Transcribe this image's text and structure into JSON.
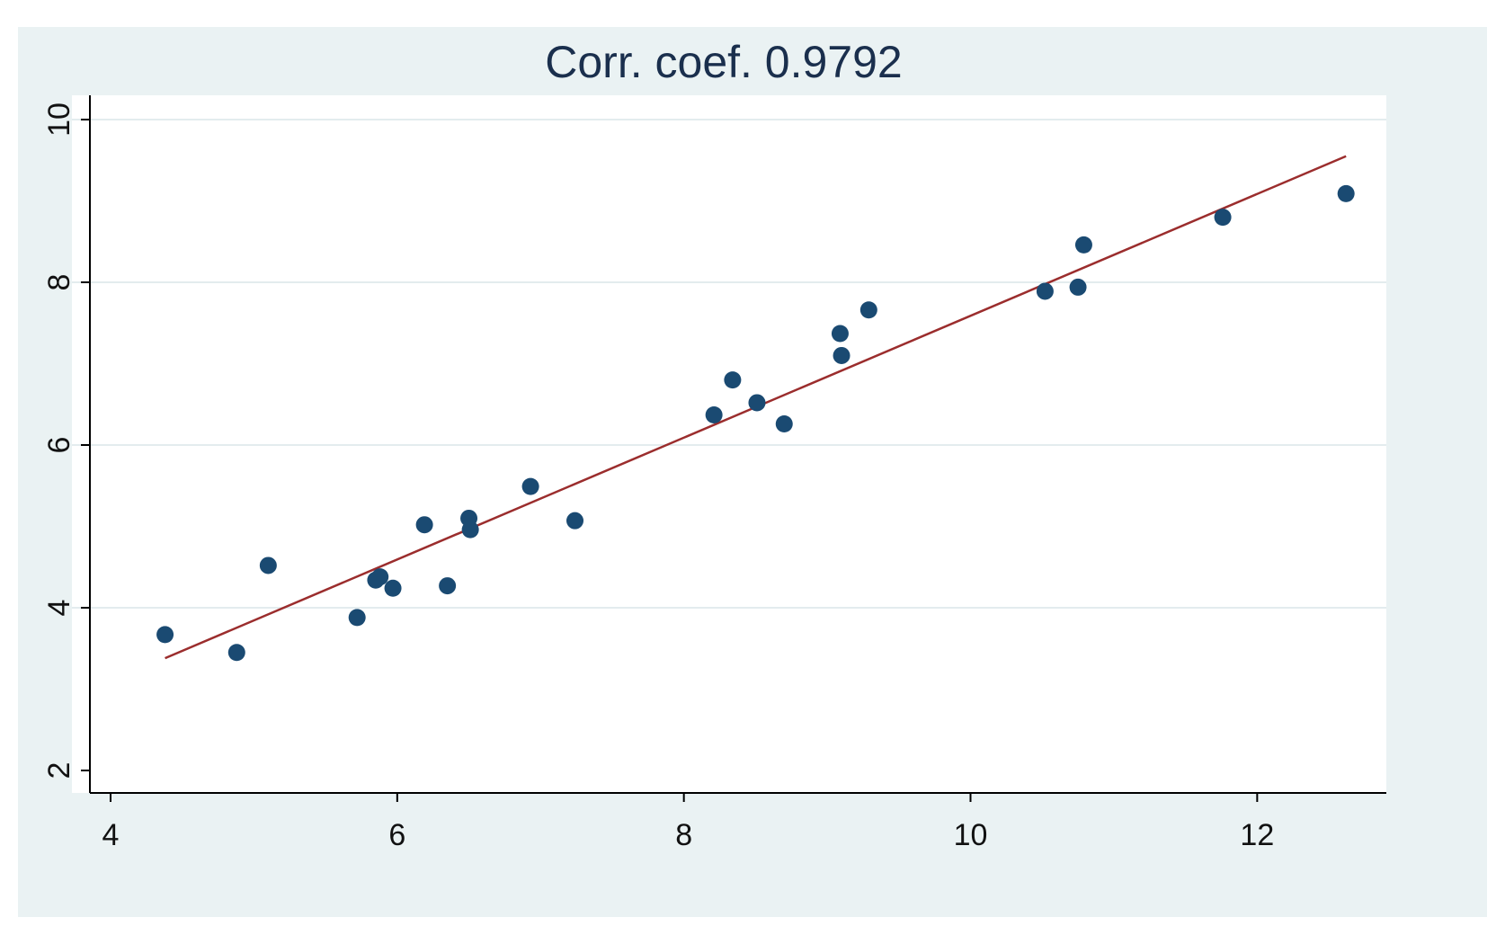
{
  "chart_data": {
    "type": "scatter",
    "title": "Corr. coef. 0.9792",
    "xlabel": "",
    "ylabel": "",
    "xlim": [
      4,
      12.6
    ],
    "ylim": [
      2,
      10
    ],
    "xticks": [
      4,
      6,
      8,
      10,
      12
    ],
    "yticks": [
      2,
      4,
      6,
      8,
      10
    ],
    "grid": true,
    "colors": {
      "background": "#eaf2f3",
      "plot_area": "#ffffff",
      "grid": "#e3ecee",
      "points": "#1a4a72",
      "fit_line": "#9b2d2d",
      "title": "#1a2f4d",
      "axis": "#000000"
    },
    "series": [
      {
        "type": "scatter",
        "points": [
          {
            "x": 4.38,
            "y": 3.67
          },
          {
            "x": 4.88,
            "y": 3.45
          },
          {
            "x": 5.1,
            "y": 4.52
          },
          {
            "x": 5.72,
            "y": 3.88
          },
          {
            "x": 5.85,
            "y": 4.34
          },
          {
            "x": 5.88,
            "y": 4.38
          },
          {
            "x": 5.97,
            "y": 4.24
          },
          {
            "x": 6.19,
            "y": 5.02
          },
          {
            "x": 6.35,
            "y": 4.27
          },
          {
            "x": 6.5,
            "y": 5.1
          },
          {
            "x": 6.51,
            "y": 4.96
          },
          {
            "x": 6.93,
            "y": 5.49
          },
          {
            "x": 7.24,
            "y": 5.07
          },
          {
            "x": 8.21,
            "y": 6.37
          },
          {
            "x": 8.34,
            "y": 6.8
          },
          {
            "x": 8.51,
            "y": 6.52
          },
          {
            "x": 8.7,
            "y": 6.26
          },
          {
            "x": 9.09,
            "y": 7.37
          },
          {
            "x": 9.1,
            "y": 7.1
          },
          {
            "x": 9.29,
            "y": 7.66
          },
          {
            "x": 10.52,
            "y": 7.89
          },
          {
            "x": 10.75,
            "y": 7.94
          },
          {
            "x": 10.79,
            "y": 8.46
          },
          {
            "x": 11.76,
            "y": 8.8
          },
          {
            "x": 12.62,
            "y": 9.09
          }
        ]
      },
      {
        "type": "line",
        "points": [
          {
            "x": 4.38,
            "y": 3.38
          },
          {
            "x": 12.62,
            "y": 9.55
          }
        ]
      }
    ]
  }
}
